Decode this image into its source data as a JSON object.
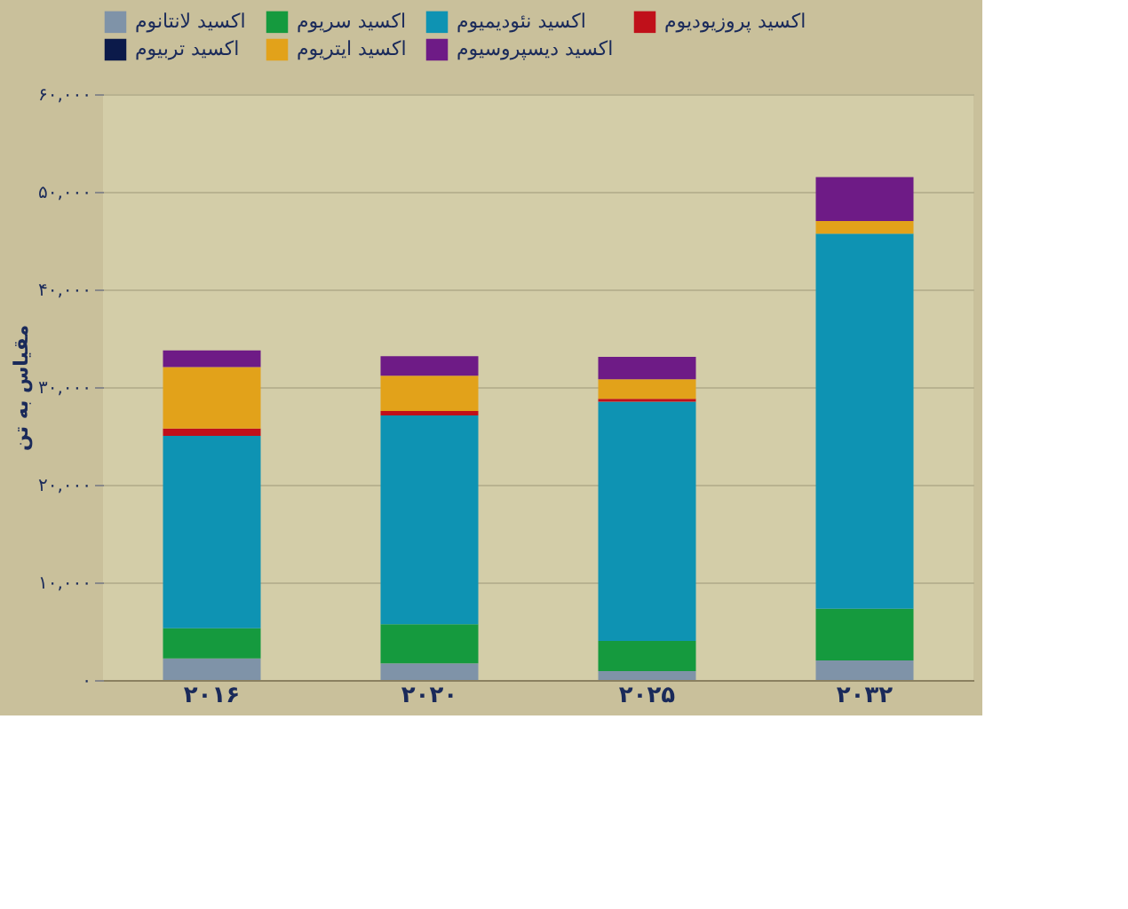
{
  "chart_data": {
    "type": "bar",
    "stacked": true,
    "ylabel": "مقیاس به تن",
    "categories": [
      "۲۰۱۶",
      "۲۰۲۰",
      "۲۰۲۵",
      "۲۰۳۲"
    ],
    "series": [
      {
        "name": "اکسید لانتانوم",
        "color": "#7f93a8",
        "values": [
          2200,
          1700,
          900,
          2000
        ]
      },
      {
        "name": "اکسید سریوم",
        "color": "#159a3e",
        "values": [
          3100,
          4000,
          3100,
          5300
        ]
      },
      {
        "name": "اکسید نئودیمیوم",
        "color": "#0e93b3",
        "values": [
          19700,
          21400,
          24500,
          38400
        ]
      },
      {
        "name": "اکسید پروزیودیوم",
        "color": "#c0101a",
        "values": [
          750,
          450,
          300,
          null
        ]
      },
      {
        "name": "اکسید تربیوم",
        "color": "#0b1a4a",
        "values": [
          null,
          null,
          null,
          null
        ]
      },
      {
        "name": "اکسید ایتریوم",
        "color": "#e2a21a",
        "values": [
          6300,
          3600,
          2000,
          1300
        ]
      },
      {
        "name": "اکسید دیسپروسیوم",
        "color": "#6e1b86",
        "values": [
          1700,
          2000,
          2300,
          4500
        ]
      }
    ],
    "ylim": [
      0,
      60000
    ],
    "yticks": [
      {
        "value": 0,
        "label": "۰"
      },
      {
        "value": 10000,
        "label": "۱۰,۰۰۰"
      },
      {
        "value": 20000,
        "label": "۲۰,۰۰۰"
      },
      {
        "value": 30000,
        "label": "۳۰,۰۰۰"
      },
      {
        "value": 40000,
        "label": "۴۰,۰۰۰"
      },
      {
        "value": 50000,
        "label": "۵۰,۰۰۰"
      },
      {
        "value": 60000,
        "label": "۶۰,۰۰۰"
      }
    ],
    "grid": "y",
    "legend": "top"
  }
}
